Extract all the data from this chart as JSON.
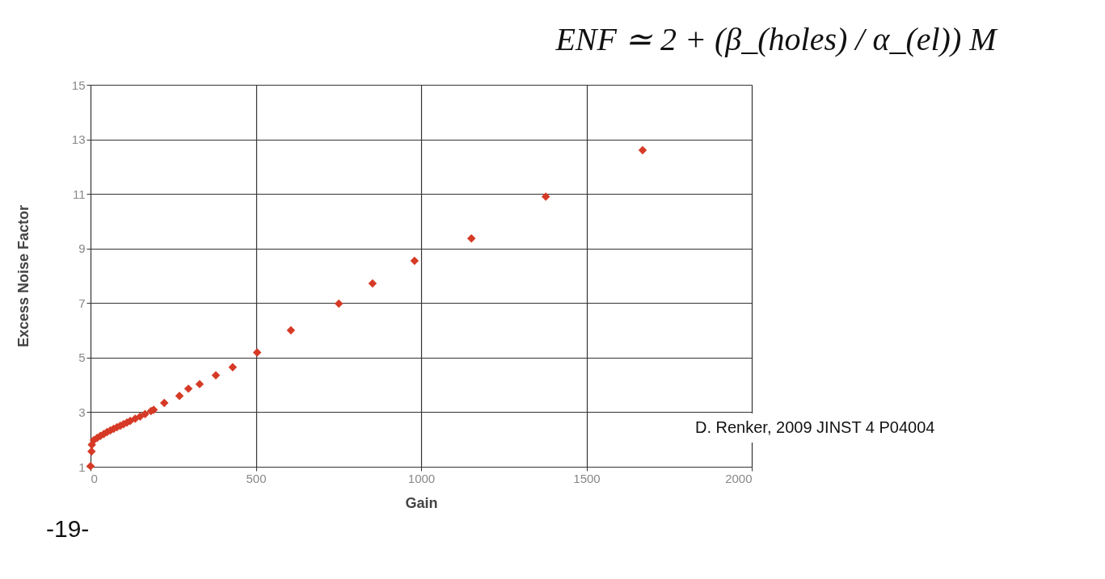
{
  "chart_data": {
    "type": "scatter",
    "xlabel": "Gain",
    "ylabel": "Excess Noise Factor",
    "x": [
      0,
      3,
      4,
      10,
      20,
      30,
      40,
      50,
      60,
      70,
      80,
      90,
      100,
      110,
      120,
      135,
      150,
      165,
      183,
      191,
      223,
      269,
      296,
      330,
      379,
      430,
      504,
      606,
      751,
      853,
      980,
      1152,
      1377,
      1670
    ],
    "series": [
      {
        "color": "#d63a26",
        "values": [
          1.02,
          1.56,
          1.81,
          1.98,
          2.06,
          2.13,
          2.2,
          2.27,
          2.33,
          2.39,
          2.45,
          2.5,
          2.56,
          2.62,
          2.68,
          2.76,
          2.84,
          2.93,
          3.04,
          3.09,
          3.34,
          3.6,
          3.86,
          4.03,
          4.35,
          4.65,
          5.19,
          6.0,
          6.98,
          7.72,
          8.55,
          9.37,
          10.9,
          12.6
        ]
      }
    ],
    "xlim": [
      0,
      2000
    ],
    "xticks": [
      0,
      500,
      1000,
      1500,
      2000
    ],
    "ylim": [
      1,
      15
    ],
    "yticks": [
      1,
      3,
      5,
      7,
      9,
      11,
      13,
      15
    ],
    "grid": true,
    "marker": "diamond",
    "annotations": [
      "ENF ≃ 2 + (β_(holes) / α_(el)) M",
      "D. Renker, 2009 JINST 4 P04004",
      "-19-"
    ]
  }
}
